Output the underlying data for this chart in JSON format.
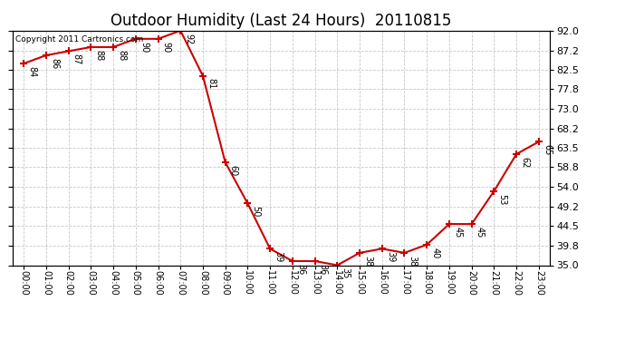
{
  "title": "Outdoor Humidity (Last 24 Hours)  20110815",
  "copyright_text": "Copyright 2011 Cartronics.com",
  "x_labels": [
    "00:00",
    "01:00",
    "02:00",
    "03:00",
    "04:00",
    "05:00",
    "06:00",
    "07:00",
    "08:00",
    "09:00",
    "10:00",
    "11:00",
    "12:00",
    "13:00",
    "14:00",
    "15:00",
    "16:00",
    "17:00",
    "18:00",
    "19:00",
    "20:00",
    "21:00",
    "22:00",
    "23:00"
  ],
  "y_values": [
    84,
    86,
    87,
    88,
    88,
    90,
    90,
    92,
    81,
    60,
    50,
    39,
    36,
    36,
    35,
    38,
    39,
    38,
    40,
    45,
    45,
    53,
    62,
    65
  ],
  "y_labels": [
    35.0,
    39.8,
    44.5,
    49.2,
    54.0,
    58.8,
    63.5,
    68.2,
    73.0,
    77.8,
    82.5,
    87.2,
    92.0
  ],
  "ylim": [
    35.0,
    92.0
  ],
  "line_color": "#cc0000",
  "marker_color": "#cc0000",
  "bg_color": "#ffffff",
  "grid_color": "#c8c8c8",
  "title_fontsize": 12,
  "annotation_fontsize": 7,
  "copyright_fontsize": 6.5,
  "xtick_fontsize": 7,
  "ytick_fontsize": 8
}
